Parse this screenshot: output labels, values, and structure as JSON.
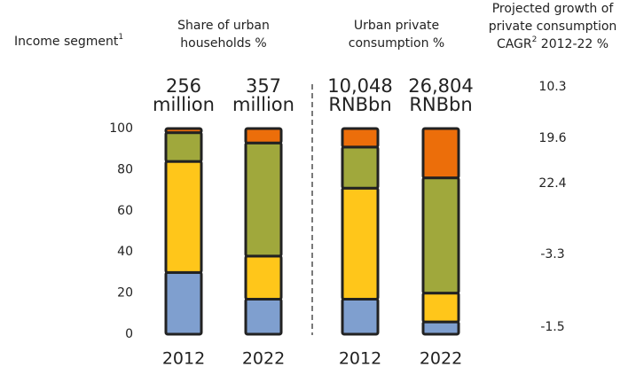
{
  "chart_data": {
    "type": "bar",
    "stacked": true,
    "headers": {
      "segment": [
        "Income segment",
        "1"
      ],
      "share": [
        "Share of urban",
        "households %"
      ],
      "consumption": [
        "Urban private",
        "consumption %"
      ],
      "growth": [
        "Projected growth of",
        "private consumption",
        [
          "CAGR",
          "2",
          " 2012-22 %"
        ]
      ]
    },
    "categories": [
      "2012",
      "2022",
      "2012",
      "2022"
    ],
    "bar_labels": [
      [
        "256",
        "million"
      ],
      [
        "357",
        "million"
      ],
      [
        "10,048",
        "RNBbn"
      ],
      [
        "26,804",
        "RNBbn"
      ]
    ],
    "series": [
      {
        "color": "#7f9fcf",
        "values": [
          30,
          17,
          17,
          6
        ]
      },
      {
        "color": "#ffc61a",
        "values": [
          54,
          21,
          54,
          14
        ]
      },
      {
        "color": "#a0a83c",
        "values": [
          14,
          55,
          20,
          56
        ]
      },
      {
        "color": "#ec6e0a",
        "values": [
          2,
          7,
          9,
          24
        ]
      }
    ],
    "growth": [
      10.3,
      19.6,
      22.4,
      -3.3,
      -1.5
    ],
    "ylim": [
      0,
      100
    ],
    "yticks": [
      0,
      20,
      40,
      60,
      80,
      100
    ]
  }
}
